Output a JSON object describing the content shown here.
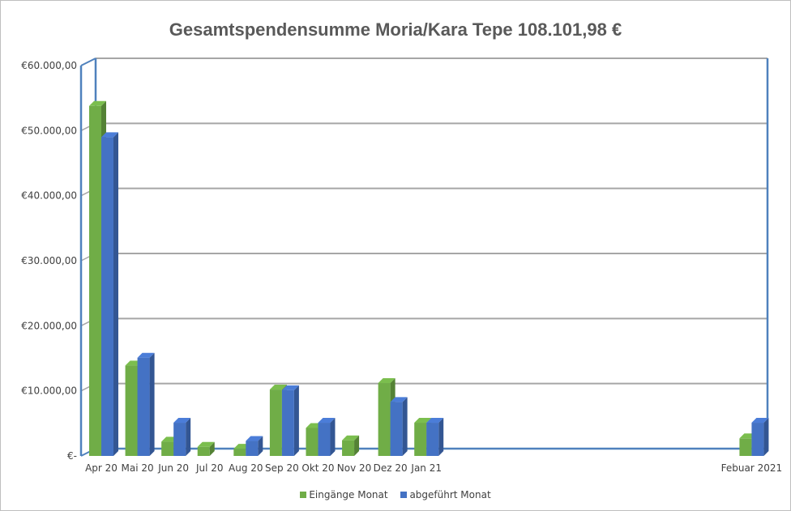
{
  "chart_data": {
    "type": "bar",
    "title": "Gesamtspendensumme Moria/Kara Tepe 108.101,98 €",
    "categories": [
      "Apr 20",
      "Mai 20",
      "Jun 20",
      "Jul 20",
      "Aug 20",
      "Sep 20",
      "Okt 20",
      "Nov 20",
      "Dez 20",
      "Jan 21",
      "",
      "",
      "",
      "",
      "",
      "",
      "",
      "",
      "Febuar 2021"
    ],
    "series": [
      {
        "name": "Eingänge Monat",
        "color": "#70ad47",
        "values": [
          53800,
          13900,
          2200,
          1400,
          1100,
          10200,
          4300,
          2400,
          11200,
          5100,
          0,
          0,
          0,
          0,
          0,
          0,
          0,
          0,
          2700
        ]
      },
      {
        "name": "abgeführt Monat",
        "color": "#4472c4",
        "values": [
          49000,
          15100,
          5100,
          0,
          2300,
          10100,
          5100,
          0,
          8300,
          5100,
          0,
          0,
          0,
          0,
          0,
          0,
          0,
          0,
          5100
        ]
      }
    ],
    "ylim": [
      0,
      60000
    ],
    "yticks": [
      {
        "value": 0,
        "label": "€-"
      },
      {
        "value": 10000,
        "label": "€10.000,00"
      },
      {
        "value": 20000,
        "label": "€20.000,00"
      },
      {
        "value": 30000,
        "label": "€30.000,00"
      },
      {
        "value": 40000,
        "label": "€40.000,00"
      },
      {
        "value": 50000,
        "label": "€50.000,00"
      },
      {
        "value": 60000,
        "label": "€60.000,00"
      }
    ],
    "grid": true,
    "legend_position": "bottom"
  }
}
